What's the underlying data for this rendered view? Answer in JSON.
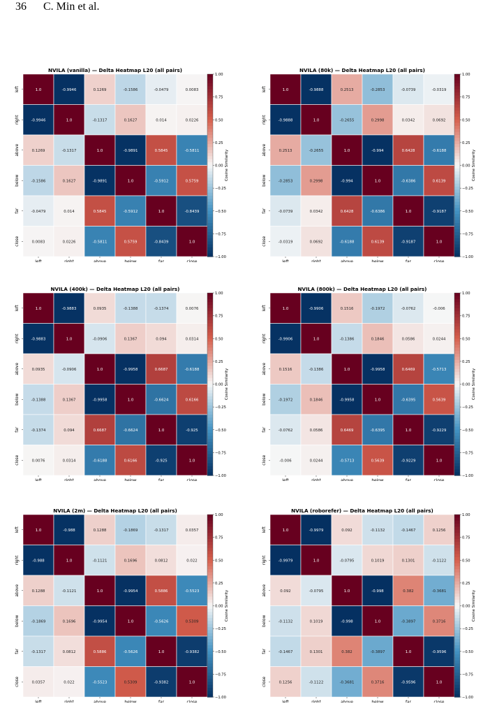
{
  "page": {
    "number": "36",
    "authors": "C. Min et al."
  },
  "shared": {
    "labels": [
      "left",
      "right",
      "above",
      "below",
      "far",
      "close"
    ],
    "colorbar_label": "Cosine Similarity",
    "colorbar_ticks": [
      "1.00",
      "0.75",
      "0.50",
      "0.25",
      "0.00",
      "−0.25",
      "−0.50",
      "−0.75",
      "−1.00"
    ],
    "colormap": {
      "neg_extreme": "#053061",
      "neg_mid": "#4393c3",
      "neutral": "#f7f7f7",
      "pos_mid": "#d6604d",
      "pos_extreme": "#67001f"
    }
  },
  "chart_data": [
    {
      "type": "heatmap",
      "title": "NVILA (vanilla) — Delta Heatmap L20 (all pairs)",
      "x_categories": [
        "left",
        "right",
        "above",
        "below",
        "far",
        "close"
      ],
      "y_categories": [
        "left",
        "right",
        "above",
        "below",
        "far",
        "close"
      ],
      "vmin": -1.0,
      "vmax": 1.0,
      "colorbar_label": "Cosine Similarity",
      "values": [
        [
          "1.0",
          "-0.9946",
          "0.1269",
          "-0.1586",
          "-0.0479",
          "0.0083"
        ],
        [
          "-0.9946",
          "1.0",
          "-0.1317",
          "0.1627",
          "0.014",
          "0.0226"
        ],
        [
          "0.1269",
          "-0.1317",
          "1.0",
          "-0.9891",
          "0.5845",
          "-0.5811"
        ],
        [
          "-0.1586",
          "0.1627",
          "-0.9891",
          "1.0",
          "-0.5912",
          "0.5759"
        ],
        [
          "-0.0479",
          "0.014",
          "0.5845",
          "-0.5912",
          "1.0",
          "-0.8439"
        ],
        [
          "0.0083",
          "0.0226",
          "-0.5811",
          "0.5759",
          "-0.8439",
          "1.0"
        ]
      ]
    },
    {
      "type": "heatmap",
      "title": "NVILA (80k) — Delta Heatmap L20 (all pairs)",
      "x_categories": [
        "left",
        "right",
        "above",
        "below",
        "far",
        "close"
      ],
      "y_categories": [
        "left",
        "right",
        "above",
        "below",
        "far",
        "close"
      ],
      "vmin": -1.0,
      "vmax": 1.0,
      "colorbar_label": "Cosine Similarity",
      "values": [
        [
          "1.0",
          "-0.9888",
          "0.2513",
          "-0.2853",
          "-0.0739",
          "-0.0319"
        ],
        [
          "-0.9888",
          "1.0",
          "-0.2655",
          "0.2998",
          "0.0342",
          "0.0692"
        ],
        [
          "0.2513",
          "-0.2655",
          "1.0",
          "-0.994",
          "0.6428",
          "-0.6188"
        ],
        [
          "-0.2853",
          "0.2998",
          "-0.994",
          "1.0",
          "-0.6386",
          "0.6139"
        ],
        [
          "-0.0739",
          "0.0342",
          "0.6428",
          "-0.6386",
          "1.0",
          "-0.9187"
        ],
        [
          "-0.0319",
          "0.0692",
          "-0.6188",
          "0.6139",
          "-0.9187",
          "1.0"
        ]
      ]
    },
    {
      "type": "heatmap",
      "title": "NVILA (400k) — Delta Heatmap L20 (all pairs)",
      "x_categories": [
        "left",
        "right",
        "above",
        "below",
        "far",
        "close"
      ],
      "y_categories": [
        "left",
        "right",
        "above",
        "below",
        "far",
        "close"
      ],
      "vmin": -1.0,
      "vmax": 1.0,
      "colorbar_label": "Cosine Similarity",
      "values": [
        [
          "1.0",
          "-0.9883",
          "0.0935",
          "-0.1388",
          "-0.1374",
          "0.0076"
        ],
        [
          "-0.9883",
          "1.0",
          "-0.0906",
          "0.1367",
          "0.094",
          "0.0314"
        ],
        [
          "0.0935",
          "-0.0906",
          "1.0",
          "-0.9958",
          "0.6687",
          "-0.6188"
        ],
        [
          "-0.1388",
          "0.1367",
          "-0.9958",
          "1.0",
          "-0.6624",
          "0.6166"
        ],
        [
          "-0.1374",
          "0.094",
          "0.6687",
          "-0.6624",
          "1.0",
          "-0.925"
        ],
        [
          "0.0076",
          "0.0314",
          "-0.6188",
          "0.6166",
          "-0.925",
          "1.0"
        ]
      ]
    },
    {
      "type": "heatmap",
      "title": "NVILA (800k) — Delta Heatmap L20 (all pairs)",
      "x_categories": [
        "left",
        "right",
        "above",
        "below",
        "far",
        "close"
      ],
      "y_categories": [
        "left",
        "right",
        "above",
        "below",
        "far",
        "close"
      ],
      "vmin": -1.0,
      "vmax": 1.0,
      "colorbar_label": "Cosine Similarity",
      "values": [
        [
          "1.0",
          "-0.9906",
          "0.1516",
          "-0.1972",
          "-0.0762",
          "-0.006"
        ],
        [
          "-0.9906",
          "1.0",
          "-0.1386",
          "0.1846",
          "0.0586",
          "0.0244"
        ],
        [
          "0.1516",
          "-0.1386",
          "1.0",
          "-0.9958",
          "0.6469",
          "-0.5713"
        ],
        [
          "-0.1972",
          "0.1846",
          "-0.9958",
          "1.0",
          "-0.6395",
          "0.5639"
        ],
        [
          "-0.0762",
          "0.0586",
          "0.6469",
          "-0.6395",
          "1.0",
          "-0.9229"
        ],
        [
          "-0.006",
          "0.0244",
          "-0.5713",
          "0.5639",
          "-0.9229",
          "1.0"
        ]
      ]
    },
    {
      "type": "heatmap",
      "title": "NVILA (2m) — Delta Heatmap L20 (all pairs)",
      "x_categories": [
        "left",
        "right",
        "above",
        "below",
        "far",
        "close"
      ],
      "y_categories": [
        "left",
        "right",
        "above",
        "below",
        "far",
        "close"
      ],
      "vmin": -1.0,
      "vmax": 1.0,
      "colorbar_label": "Cosine Similarity",
      "values": [
        [
          "1.0",
          "-0.988",
          "0.1288",
          "-0.1869",
          "-0.1317",
          "0.0357"
        ],
        [
          "-0.988",
          "1.0",
          "-0.1121",
          "0.1696",
          "0.0812",
          "0.022"
        ],
        [
          "0.1288",
          "-0.1121",
          "1.0",
          "-0.9954",
          "0.5886",
          "-0.5523"
        ],
        [
          "-0.1869",
          "0.1696",
          "-0.9954",
          "1.0",
          "-0.5626",
          "0.5309"
        ],
        [
          "-0.1317",
          "0.0812",
          "0.5886",
          "-0.5626",
          "1.0",
          "-0.9382"
        ],
        [
          "0.0357",
          "0.022",
          "-0.5523",
          "0.5309",
          "-0.9382",
          "1.0"
        ]
      ]
    },
    {
      "type": "heatmap",
      "title": "NVILA (roborefer) — Delta Heatmap L20 (all pairs)",
      "x_categories": [
        "left",
        "right",
        "above",
        "below",
        "far",
        "close"
      ],
      "y_categories": [
        "left",
        "right",
        "above",
        "below",
        "far",
        "close"
      ],
      "vmin": -1.0,
      "vmax": 1.0,
      "colorbar_label": "Cosine Similarity",
      "values": [
        [
          "1.0",
          "-0.9979",
          "0.092",
          "-0.1132",
          "-0.1467",
          "0.1256"
        ],
        [
          "-0.9979",
          "1.0",
          "-0.0795",
          "0.1019",
          "0.1301",
          "-0.1122"
        ],
        [
          "0.092",
          "-0.0795",
          "1.0",
          "-0.998",
          "0.382",
          "-0.3681"
        ],
        [
          "-0.1132",
          "0.1019",
          "-0.998",
          "1.0",
          "-0.3897",
          "0.3716"
        ],
        [
          "-0.1467",
          "0.1301",
          "0.382",
          "-0.3897",
          "1.0",
          "-0.9596"
        ],
        [
          "0.1256",
          "-0.1122",
          "-0.3681",
          "0.3716",
          "-0.9596",
          "1.0"
        ]
      ]
    }
  ]
}
